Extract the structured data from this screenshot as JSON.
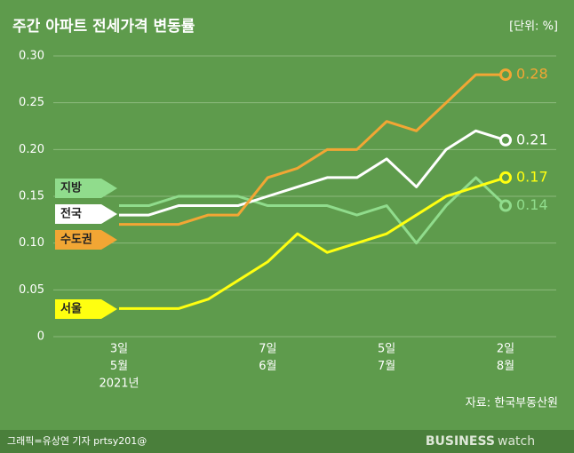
{
  "chart_data": {
    "type": "line",
    "title": "주간 아파트 전세가격 변동률",
    "unit": "[단위: %]",
    "categories": [
      [
        "3일",
        "5월",
        "2021년"
      ],
      null,
      null,
      null,
      null,
      [
        "7일",
        "6월"
      ],
      null,
      null,
      null,
      [
        "5일",
        "7월"
      ],
      null,
      null,
      null,
      [
        "2일",
        "8월"
      ]
    ],
    "series": [
      {
        "name": "지방",
        "color": "#90dc8c",
        "values": [
          0.14,
          0.14,
          0.15,
          0.15,
          0.15,
          0.14,
          0.14,
          0.14,
          0.13,
          0.14,
          0.1,
          0.14,
          0.17,
          0.14
        ]
      },
      {
        "name": "전국",
        "color": "#ffffff",
        "values": [
          0.13,
          0.13,
          0.14,
          0.14,
          0.14,
          0.15,
          0.16,
          0.17,
          0.17,
          0.19,
          0.16,
          0.2,
          0.22,
          0.21
        ]
      },
      {
        "name": "수도권",
        "color": "#f2a634",
        "values": [
          0.12,
          0.12,
          0.12,
          0.13,
          0.13,
          0.17,
          0.18,
          0.2,
          0.2,
          0.23,
          0.22,
          0.25,
          0.28,
          0.28
        ]
      },
      {
        "name": "서울",
        "color": "#ffff10",
        "values": [
          0.03,
          0.03,
          0.03,
          0.04,
          0.06,
          0.08,
          0.11,
          0.09,
          0.1,
          0.11,
          0.13,
          0.15,
          0.16,
          0.17
        ]
      }
    ],
    "ylim": [
      0,
      0.3
    ],
    "yticks": [
      0,
      0.05,
      {
        "value": 0.1,
        "label": "0.10"
      },
      0.15,
      {
        "value": 0.2,
        "label": "0.20"
      },
      0.25,
      {
        "value": 0.3,
        "label": "0.30"
      }
    ],
    "grid": true,
    "source": "자료: 한국부동산원"
  },
  "footer": {
    "credit": "그래픽=유상연 기자 prtsy201@",
    "logo_bold": "BUSINESS",
    "logo_light": "watch"
  }
}
